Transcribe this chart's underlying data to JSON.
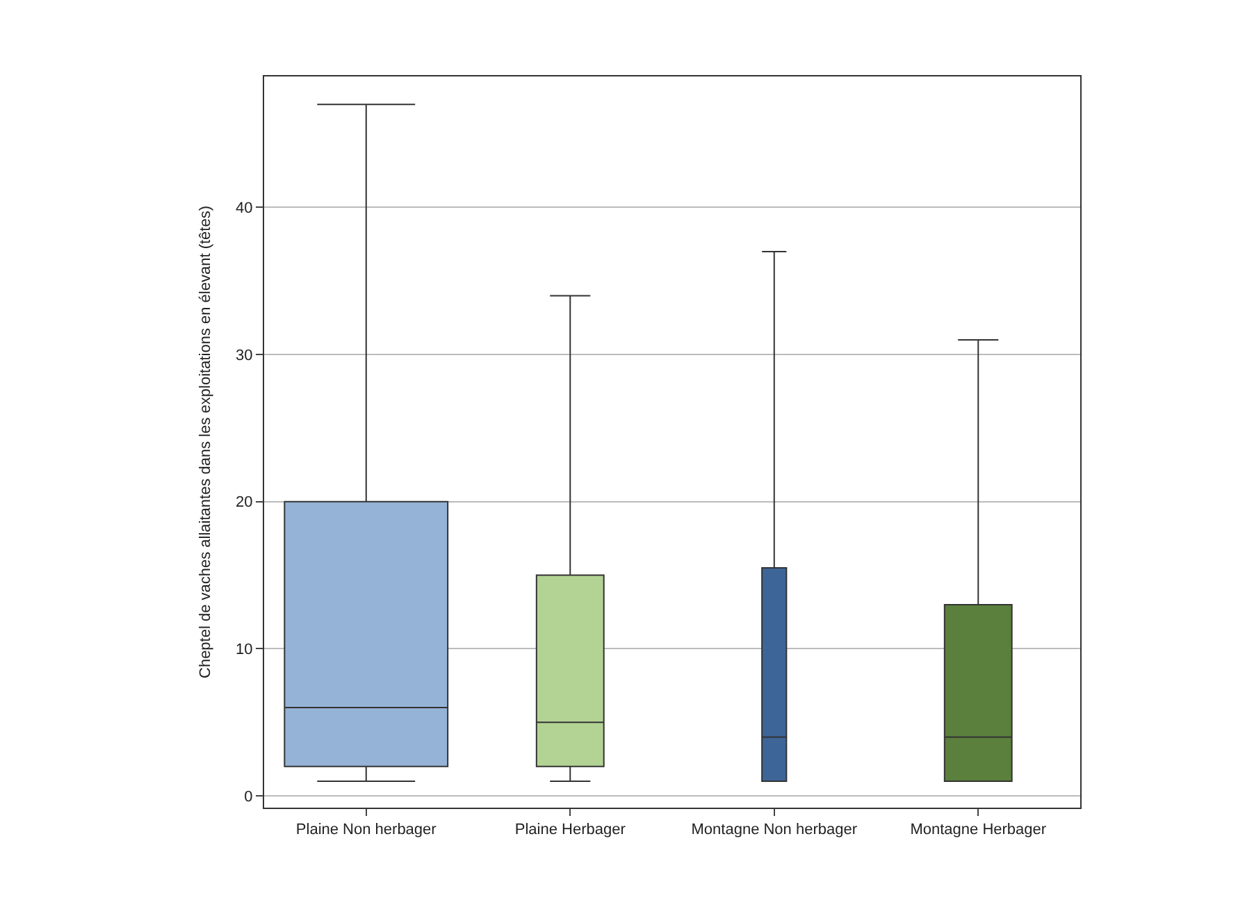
{
  "chart_data": {
    "type": "box",
    "ylabel": "Cheptel de vaches allaitantes dans les exploitations en élevant (têtes)",
    "categories": [
      "Plaine Non herbager",
      "Plaine Herbager",
      "Montagne Non herbager",
      "Montagne Herbager"
    ],
    "colors": [
      "#95b3d7",
      "#b3d394",
      "#3e6598",
      "#5b7f3c"
    ],
    "boxes": [
      {
        "low": 1,
        "q1": 2,
        "median": 6,
        "q3": 20,
        "high": 47
      },
      {
        "low": 1,
        "q1": 2,
        "median": 5,
        "q3": 15,
        "high": 34
      },
      {
        "low": 1,
        "q1": 1,
        "median": 4,
        "q3": 15.5,
        "high": 37
      },
      {
        "low": 1,
        "q1": 1,
        "median": 4,
        "q3": 13,
        "high": 31
      }
    ],
    "ylim": [
      -0.8,
      48.9
    ],
    "yticks": [
      0,
      10,
      20,
      30,
      40
    ],
    "grid": "y"
  }
}
